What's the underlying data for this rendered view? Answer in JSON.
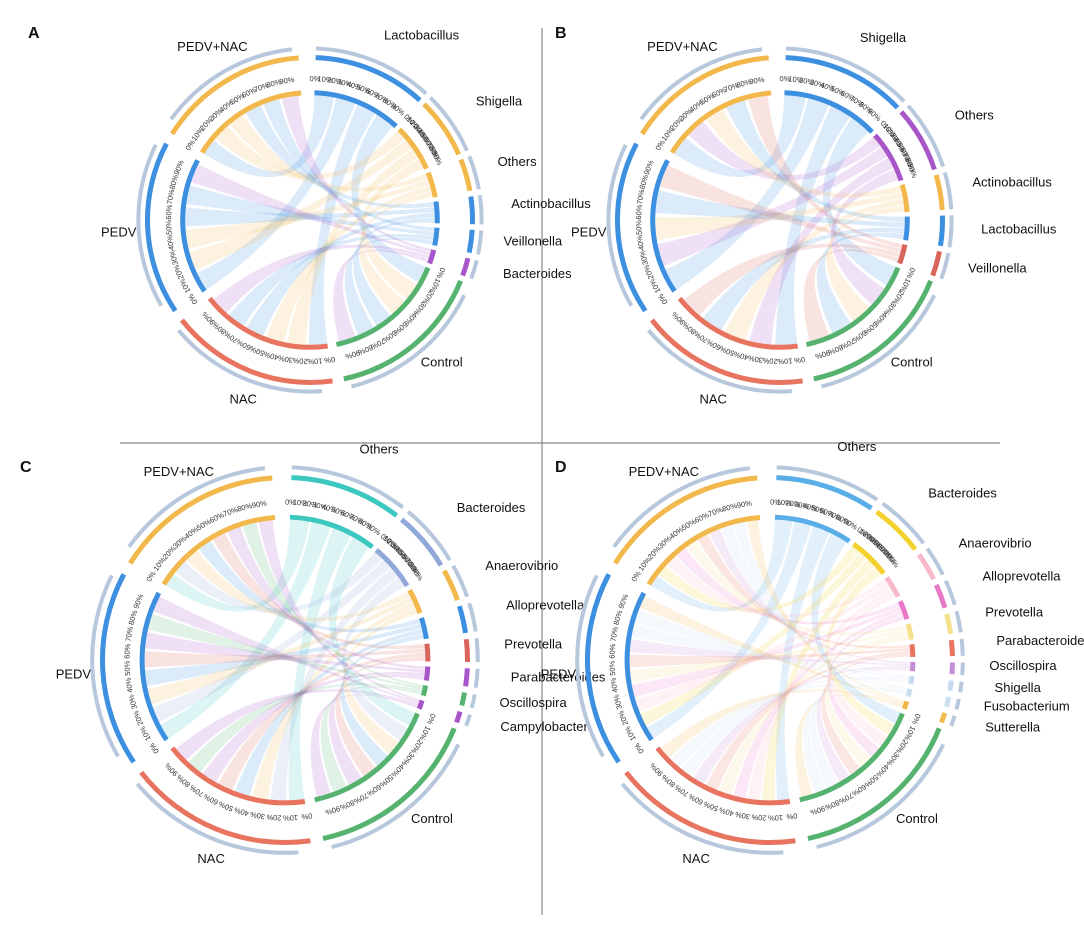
{
  "figure": {
    "colors": {
      "control": "#55b26f",
      "nac": "#e8735f",
      "pedv": "#3d8fe0",
      "pedv_nac": "#f2b84b",
      "divider": "#888888",
      "track": "#b7c8dc"
    }
  },
  "chart_data": [
    {
      "type": "chord",
      "panel": "A",
      "groups": [
        "PEDV+NAC",
        "PEDV",
        "NAC",
        "Control"
      ],
      "taxa": [
        "Lactobacillus",
        "Shigella",
        "Others",
        "Actinobacillus",
        "Veillonella",
        "Bacteroides"
      ],
      "tick_labels": [
        "0%",
        "10%",
        "20%",
        "30%",
        "40%",
        "50%",
        "60%",
        "70%",
        "80%",
        "90%"
      ],
      "taxa_colors": [
        "#3d8fe0",
        "#f2b84b",
        "#f2b84b",
        "#3d8fe0",
        "#3d8fe0",
        "#a855c8"
      ],
      "chord_colors": [
        "#3d8fe0",
        "#f2b84b",
        "#f2b84b",
        "#3d8fe0",
        "#3d8fe0",
        "#a855c8"
      ]
    },
    {
      "type": "chord",
      "panel": "B",
      "groups": [
        "PEDV+NAC",
        "PEDV",
        "NAC",
        "Control"
      ],
      "taxa": [
        "Shigella",
        "Others",
        "Actinobacillus",
        "Lactobacillus",
        "Veillonella"
      ],
      "tick_labels": [
        "0%",
        "10%",
        "20%",
        "30%",
        "40%",
        "50%",
        "60%",
        "70%",
        "80%",
        "90%"
      ],
      "taxa_colors": [
        "#3d8fe0",
        "#a855c8",
        "#f2b84b",
        "#3d8fe0",
        "#d9645a"
      ],
      "chord_colors": [
        "#3d8fe0",
        "#a855c8",
        "#f2b84b",
        "#3d8fe0",
        "#d9645a"
      ]
    },
    {
      "type": "chord",
      "panel": "C",
      "groups": [
        "PEDV+NAC",
        "PEDV",
        "NAC",
        "Control"
      ],
      "taxa": [
        "Others",
        "Bacteroides",
        "Anaerovibrio",
        "Alloprevotella",
        "Prevotella",
        "Parabacteroides",
        "Oscillospira",
        "Campylobacter"
      ],
      "tick_labels": [
        "0%",
        "10%",
        "20%",
        "30%",
        "40%",
        "50%",
        "60%",
        "70%",
        "80%",
        "90%"
      ],
      "taxa_colors": [
        "#3cc8c0",
        "#8fa8d8",
        "#f2b84b",
        "#3d8fe0",
        "#d9645a",
        "#a855c8",
        "#55b26f",
        "#a855c8"
      ],
      "chord_colors": [
        "#3cc8c0",
        "#8fa8d8",
        "#f2b84b",
        "#3d8fe0",
        "#d9645a",
        "#a855c8",
        "#55b26f",
        "#a855c8"
      ]
    },
    {
      "type": "chord",
      "panel": "D",
      "groups": [
        "PEDV+NAC",
        "PEDV",
        "NAC",
        "Control"
      ],
      "taxa": [
        "Others",
        "Bacteroides",
        "Anaerovibrio",
        "Alloprevotella",
        "Prevotella",
        "Parabacteroides",
        "Oscillospira",
        "Shigella",
        "Fusobacterium",
        "Sutterella"
      ],
      "tick_labels": [
        "0%",
        "10%",
        "20%",
        "30%",
        "40%",
        "50%",
        "60%",
        "70%",
        "80%",
        "90%"
      ],
      "taxa_colors": [
        "#5aaee8",
        "#f5d130",
        "#f7b8c8",
        "#e878c8",
        "#f5e08a",
        "#e8735f",
        "#c58fd8",
        "#c8d8f0",
        "#c8e0f0",
        "#f2b84b"
      ],
      "chord_colors": [
        "#5aaee8",
        "#f5d130",
        "#f7b8c8",
        "#e878c8",
        "#f5e08a",
        "#e8735f",
        "#c58fd8",
        "#c8d8f0",
        "#c8e0f0",
        "#f2b84b"
      ]
    }
  ]
}
